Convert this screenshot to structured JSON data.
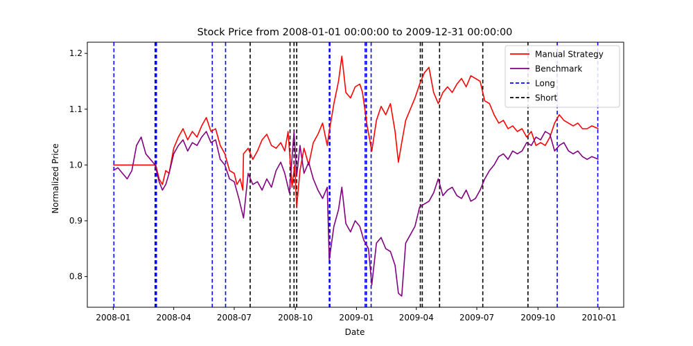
{
  "chart_data": {
    "type": "line",
    "title": "Stock Price from 2008-01-01 00:00:00 to 2009-12-31 00:00:00",
    "xlabel": "Date",
    "ylabel": "Normalized Price",
    "xlim": [
      "2007-11-23",
      "2010-02-07"
    ],
    "ylim": [
      0.745,
      1.22
    ],
    "x_ticks": [
      {
        "date": "2008-01-01",
        "label": "2008-01"
      },
      {
        "date": "2008-04-01",
        "label": "2008-04"
      },
      {
        "date": "2008-07-01",
        "label": "2008-07"
      },
      {
        "date": "2008-10-01",
        "label": "2008-10"
      },
      {
        "date": "2009-01-01",
        "label": "2009-01"
      },
      {
        "date": "2009-04-01",
        "label": "2009-04"
      },
      {
        "date": "2009-07-01",
        "label": "2009-07"
      },
      {
        "date": "2009-10-01",
        "label": "2009-10"
      },
      {
        "date": "2010-01-01",
        "label": "2010-01"
      }
    ],
    "y_ticks": [
      0.8,
      0.9,
      1.0,
      1.1,
      1.2
    ],
    "series": [
      {
        "name": "Manual Strategy",
        "color": "#ff0000",
        "points": [
          [
            "2008-01-01",
            1.0
          ],
          [
            "2008-01-15",
            1.0
          ],
          [
            "2008-02-01",
            1.0
          ],
          [
            "2008-02-15",
            1.0
          ],
          [
            "2008-03-01",
            1.0
          ],
          [
            "2008-03-05",
            1.0
          ],
          [
            "2008-03-10",
            0.975
          ],
          [
            "2008-03-15",
            0.965
          ],
          [
            "2008-03-20",
            0.99
          ],
          [
            "2008-03-25",
            0.985
          ],
          [
            "2008-04-01",
            1.03
          ],
          [
            "2008-04-08",
            1.05
          ],
          [
            "2008-04-15",
            1.065
          ],
          [
            "2008-04-22",
            1.045
          ],
          [
            "2008-04-29",
            1.06
          ],
          [
            "2008-05-06",
            1.05
          ],
          [
            "2008-05-13",
            1.07
          ],
          [
            "2008-05-20",
            1.085
          ],
          [
            "2008-05-27",
            1.06
          ],
          [
            "2008-06-03",
            1.065
          ],
          [
            "2008-06-10",
            1.035
          ],
          [
            "2008-06-17",
            1.02
          ],
          [
            "2008-06-24",
            0.99
          ],
          [
            "2008-07-01",
            0.985
          ],
          [
            "2008-07-05",
            0.965
          ],
          [
            "2008-07-10",
            0.975
          ],
          [
            "2008-07-14",
            0.955
          ],
          [
            "2008-07-15",
            1.02
          ],
          [
            "2008-07-22",
            1.03
          ],
          [
            "2008-07-29",
            1.01
          ],
          [
            "2008-08-05",
            1.025
          ],
          [
            "2008-08-12",
            1.045
          ],
          [
            "2008-08-19",
            1.055
          ],
          [
            "2008-08-26",
            1.035
          ],
          [
            "2008-09-02",
            1.03
          ],
          [
            "2008-09-09",
            1.04
          ],
          [
            "2008-09-15",
            1.025
          ],
          [
            "2008-09-20",
            1.06
          ],
          [
            "2008-09-26",
            0.96
          ],
          [
            "2008-09-30",
            1.0
          ],
          [
            "2008-10-03",
            0.925
          ],
          [
            "2008-10-08",
            0.99
          ],
          [
            "2008-10-14",
            1.03
          ],
          [
            "2008-10-21",
            1.0
          ],
          [
            "2008-10-28",
            1.04
          ],
          [
            "2008-11-04",
            1.055
          ],
          [
            "2008-11-11",
            1.075
          ],
          [
            "2008-11-18",
            1.035
          ],
          [
            "2008-11-21",
            1.06
          ],
          [
            "2008-11-28",
            1.11
          ],
          [
            "2008-12-05",
            1.15
          ],
          [
            "2008-12-10",
            1.195
          ],
          [
            "2008-12-16",
            1.13
          ],
          [
            "2008-12-23",
            1.12
          ],
          [
            "2008-12-30",
            1.14
          ],
          [
            "2009-01-06",
            1.145
          ],
          [
            "2009-01-10",
            1.13
          ],
          [
            "2009-01-17",
            1.07
          ],
          [
            "2009-01-24",
            1.025
          ],
          [
            "2009-01-31",
            1.08
          ],
          [
            "2009-02-07",
            1.105
          ],
          [
            "2009-02-14",
            1.09
          ],
          [
            "2009-02-21",
            1.11
          ],
          [
            "2009-02-28",
            1.06
          ],
          [
            "2009-03-05",
            1.005
          ],
          [
            "2009-03-10",
            1.04
          ],
          [
            "2009-03-16",
            1.08
          ],
          [
            "2009-03-23",
            1.1
          ],
          [
            "2009-03-30",
            1.12
          ],
          [
            "2009-04-06",
            1.145
          ],
          [
            "2009-04-13",
            1.165
          ],
          [
            "2009-04-20",
            1.175
          ],
          [
            "2009-04-27",
            1.13
          ],
          [
            "2009-05-04",
            1.11
          ],
          [
            "2009-05-11",
            1.13
          ],
          [
            "2009-05-18",
            1.14
          ],
          [
            "2009-05-25",
            1.13
          ],
          [
            "2009-06-01",
            1.145
          ],
          [
            "2009-06-08",
            1.155
          ],
          [
            "2009-06-15",
            1.14
          ],
          [
            "2009-06-22",
            1.16
          ],
          [
            "2009-06-29",
            1.155
          ],
          [
            "2009-07-06",
            1.15
          ],
          [
            "2009-07-13",
            1.115
          ],
          [
            "2009-07-20",
            1.11
          ],
          [
            "2009-07-27",
            1.09
          ],
          [
            "2009-08-03",
            1.075
          ],
          [
            "2009-08-10",
            1.08
          ],
          [
            "2009-08-17",
            1.065
          ],
          [
            "2009-08-24",
            1.07
          ],
          [
            "2009-08-31",
            1.06
          ],
          [
            "2009-09-07",
            1.065
          ],
          [
            "2009-09-14",
            1.05
          ],
          [
            "2009-09-21",
            1.06
          ],
          [
            "2009-09-28",
            1.035
          ],
          [
            "2009-10-05",
            1.04
          ],
          [
            "2009-10-12",
            1.035
          ],
          [
            "2009-10-19",
            1.05
          ],
          [
            "2009-10-26",
            1.075
          ],
          [
            "2009-11-02",
            1.09
          ],
          [
            "2009-11-09",
            1.08
          ],
          [
            "2009-11-16",
            1.075
          ],
          [
            "2009-11-23",
            1.07
          ],
          [
            "2009-11-30",
            1.075
          ],
          [
            "2009-12-07",
            1.065
          ],
          [
            "2009-12-14",
            1.065
          ],
          [
            "2009-12-21",
            1.07
          ],
          [
            "2009-12-31",
            1.065
          ]
        ]
      },
      {
        "name": "Benchmark",
        "color": "#800080",
        "points": [
          [
            "2008-01-01",
            0.99
          ],
          [
            "2008-01-08",
            0.995
          ],
          [
            "2008-01-15",
            0.985
          ],
          [
            "2008-01-22",
            0.975
          ],
          [
            "2008-01-29",
            0.99
          ],
          [
            "2008-02-05",
            1.035
          ],
          [
            "2008-02-12",
            1.05
          ],
          [
            "2008-02-19",
            1.02
          ],
          [
            "2008-02-26",
            1.01
          ],
          [
            "2008-03-04",
            1.0
          ],
          [
            "2008-03-10",
            0.97
          ],
          [
            "2008-03-15",
            0.955
          ],
          [
            "2008-03-20",
            0.965
          ],
          [
            "2008-03-25",
            0.985
          ],
          [
            "2008-04-01",
            1.02
          ],
          [
            "2008-04-08",
            1.035
          ],
          [
            "2008-04-15",
            1.045
          ],
          [
            "2008-04-22",
            1.025
          ],
          [
            "2008-04-29",
            1.04
          ],
          [
            "2008-05-06",
            1.035
          ],
          [
            "2008-05-13",
            1.05
          ],
          [
            "2008-05-20",
            1.06
          ],
          [
            "2008-05-27",
            1.04
          ],
          [
            "2008-06-03",
            1.045
          ],
          [
            "2008-06-10",
            1.01
          ],
          [
            "2008-06-17",
            1.0
          ],
          [
            "2008-06-24",
            0.975
          ],
          [
            "2008-07-01",
            0.97
          ],
          [
            "2008-07-08",
            0.94
          ],
          [
            "2008-07-15",
            0.905
          ],
          [
            "2008-07-22",
            0.985
          ],
          [
            "2008-07-29",
            0.965
          ],
          [
            "2008-08-05",
            0.97
          ],
          [
            "2008-08-12",
            0.955
          ],
          [
            "2008-08-19",
            0.975
          ],
          [
            "2008-08-26",
            0.96
          ],
          [
            "2008-09-02",
            0.99
          ],
          [
            "2008-09-09",
            1.005
          ],
          [
            "2008-09-15",
            0.985
          ],
          [
            "2008-09-22",
            0.95
          ],
          [
            "2008-09-29",
            1.06
          ],
          [
            "2008-10-03",
            0.98
          ],
          [
            "2008-10-08",
            1.035
          ],
          [
            "2008-10-14",
            0.985
          ],
          [
            "2008-10-21",
            1.005
          ],
          [
            "2008-10-28",
            0.975
          ],
          [
            "2008-11-04",
            0.955
          ],
          [
            "2008-11-11",
            0.94
          ],
          [
            "2008-11-18",
            0.96
          ],
          [
            "2008-11-21",
            0.83
          ],
          [
            "2008-11-28",
            0.89
          ],
          [
            "2008-12-05",
            0.92
          ],
          [
            "2008-12-10",
            0.96
          ],
          [
            "2008-12-16",
            0.895
          ],
          [
            "2008-12-23",
            0.88
          ],
          [
            "2008-12-30",
            0.9
          ],
          [
            "2009-01-06",
            0.89
          ],
          [
            "2009-01-12",
            0.865
          ],
          [
            "2009-01-19",
            0.85
          ],
          [
            "2009-01-24",
            0.785
          ],
          [
            "2009-01-31",
            0.86
          ],
          [
            "2009-02-07",
            0.87
          ],
          [
            "2009-02-14",
            0.85
          ],
          [
            "2009-02-21",
            0.845
          ],
          [
            "2009-02-28",
            0.82
          ],
          [
            "2009-03-05",
            0.77
          ],
          [
            "2009-03-10",
            0.765
          ],
          [
            "2009-03-16",
            0.86
          ],
          [
            "2009-03-23",
            0.875
          ],
          [
            "2009-03-30",
            0.89
          ],
          [
            "2009-04-06",
            0.925
          ],
          [
            "2009-04-13",
            0.93
          ],
          [
            "2009-04-20",
            0.935
          ],
          [
            "2009-04-27",
            0.95
          ],
          [
            "2009-05-04",
            0.975
          ],
          [
            "2009-05-11",
            0.945
          ],
          [
            "2009-05-18",
            0.955
          ],
          [
            "2009-05-25",
            0.96
          ],
          [
            "2009-06-01",
            0.945
          ],
          [
            "2009-06-08",
            0.94
          ],
          [
            "2009-06-15",
            0.955
          ],
          [
            "2009-06-22",
            0.935
          ],
          [
            "2009-06-29",
            0.94
          ],
          [
            "2009-07-06",
            0.955
          ],
          [
            "2009-07-13",
            0.975
          ],
          [
            "2009-07-20",
            0.99
          ],
          [
            "2009-07-27",
            1.0
          ],
          [
            "2009-08-03",
            1.015
          ],
          [
            "2009-08-10",
            1.02
          ],
          [
            "2009-08-17",
            1.01
          ],
          [
            "2009-08-24",
            1.025
          ],
          [
            "2009-08-31",
            1.02
          ],
          [
            "2009-09-07",
            1.025
          ],
          [
            "2009-09-14",
            1.04
          ],
          [
            "2009-09-21",
            1.035
          ],
          [
            "2009-09-28",
            1.05
          ],
          [
            "2009-10-05",
            1.045
          ],
          [
            "2009-10-12",
            1.06
          ],
          [
            "2009-10-19",
            1.055
          ],
          [
            "2009-10-26",
            1.025
          ],
          [
            "2009-11-02",
            1.035
          ],
          [
            "2009-11-09",
            1.04
          ],
          [
            "2009-11-16",
            1.025
          ],
          [
            "2009-11-23",
            1.02
          ],
          [
            "2009-11-30",
            1.025
          ],
          [
            "2009-12-07",
            1.015
          ],
          [
            "2009-12-14",
            1.01
          ],
          [
            "2009-12-21",
            1.015
          ],
          [
            "2009-12-31",
            1.01
          ]
        ]
      }
    ],
    "signal_lines": [
      {
        "name": "Long",
        "color": "#0000ff",
        "dates": [
          "2008-01-02",
          "2008-03-04",
          "2008-03-05",
          "2008-03-06",
          "2008-05-29",
          "2008-06-18",
          "2008-11-21",
          "2008-11-22",
          "2009-01-14",
          "2009-01-16",
          "2009-01-23",
          "2009-10-30",
          "2009-12-30"
        ]
      },
      {
        "name": "Short",
        "color": "#000000",
        "dates": [
          "2008-07-25",
          "2008-09-23",
          "2008-09-29",
          "2008-10-03",
          "2009-04-07",
          "2009-04-10",
          "2009-05-06",
          "2009-07-10",
          "2009-09-16"
        ]
      }
    ],
    "legend": {
      "placement": "top-right",
      "entries": [
        {
          "label": "Manual Strategy",
          "color": "#ff0000",
          "style": "solid"
        },
        {
          "label": "Benchmark",
          "color": "#800080",
          "style": "solid"
        },
        {
          "label": "Long",
          "color": "#0000ff",
          "style": "dashed"
        },
        {
          "label": "Short",
          "color": "#000000",
          "style": "dashed"
        }
      ]
    },
    "grid": false
  }
}
